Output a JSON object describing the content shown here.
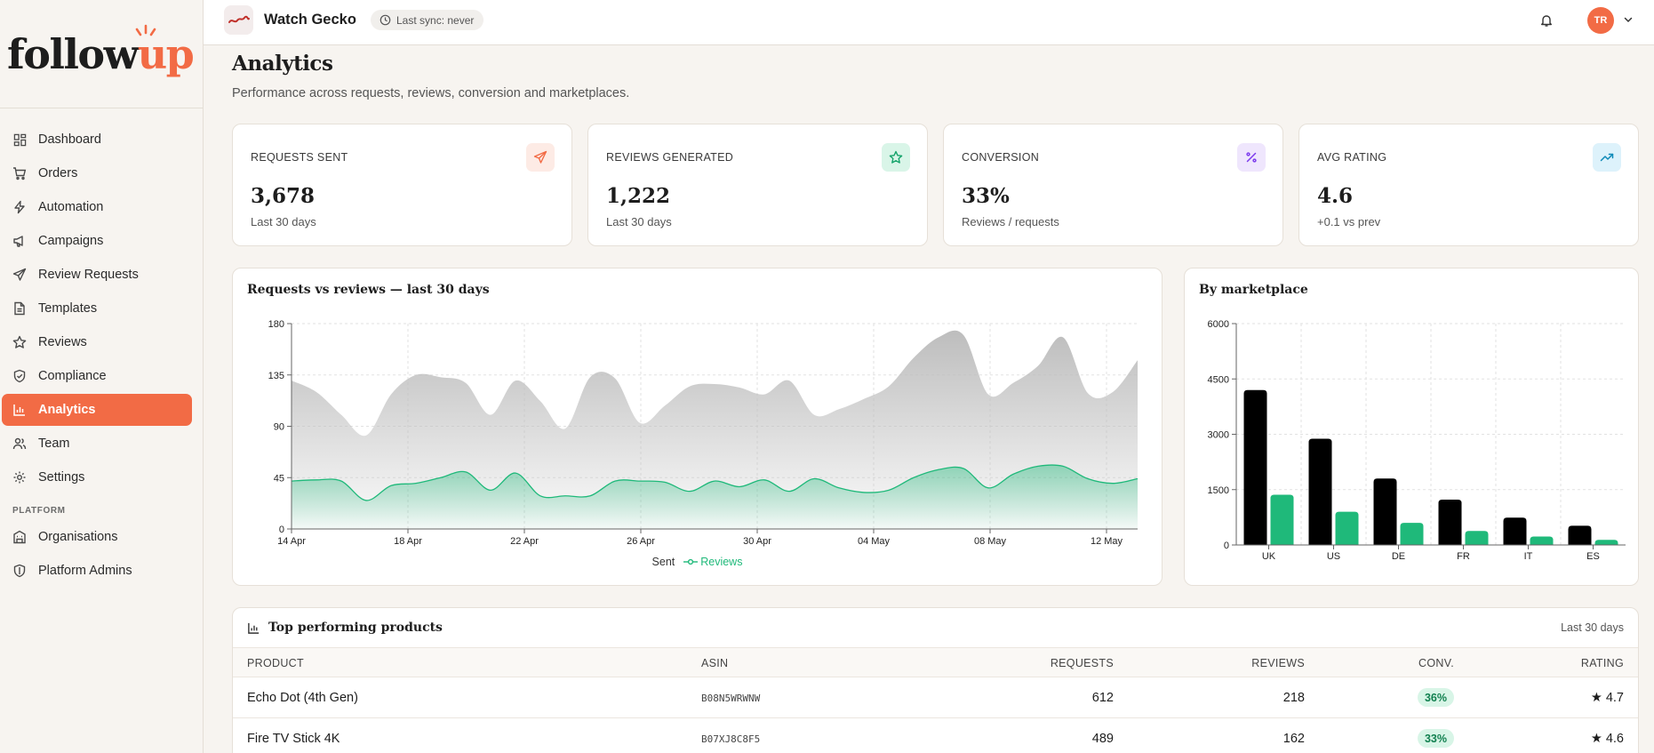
{
  "app": {
    "logo_prefix": "follow",
    "logo_suffix": "up"
  },
  "sidebar": {
    "items": [
      {
        "label": "Dashboard",
        "icon": "dashboard-icon"
      },
      {
        "label": "Orders",
        "icon": "cart-icon"
      },
      {
        "label": "Automation",
        "icon": "bolt-icon"
      },
      {
        "label": "Campaigns",
        "icon": "megaphone-icon"
      },
      {
        "label": "Review Requests",
        "icon": "send-icon"
      },
      {
        "label": "Templates",
        "icon": "document-icon"
      },
      {
        "label": "Reviews",
        "icon": "star-icon"
      },
      {
        "label": "Compliance",
        "icon": "shield-check-icon"
      },
      {
        "label": "Analytics",
        "icon": "bar-chart-icon",
        "active": true
      },
      {
        "label": "Team",
        "icon": "users-icon"
      },
      {
        "label": "Settings",
        "icon": "gear-icon"
      }
    ],
    "platform_section": "PLATFORM",
    "platform_items": [
      {
        "label": "Organisations",
        "icon": "building-icon"
      },
      {
        "label": "Platform Admins",
        "icon": "shield-icon"
      }
    ]
  },
  "topbar": {
    "store_name": "Watch Gecko",
    "sync_status": "Last sync: never",
    "avatar_initials": "TR"
  },
  "page": {
    "title": "Analytics",
    "subtitle": "Performance across requests, reviews, conversion and marketplaces."
  },
  "kpis": [
    {
      "label": "REQUESTS SENT",
      "value": "3,678",
      "note": "Last 30 days",
      "icon": "send-icon",
      "icon_color": "#f26b45",
      "icon_bg": "#fdebe5"
    },
    {
      "label": "REVIEWS GENERATED",
      "value": "1,222",
      "note": "Last 30 days",
      "icon": "star-icon",
      "icon_color": "#14a36a",
      "icon_bg": "#d9f5e8"
    },
    {
      "label": "CONVERSION",
      "value": "33%",
      "note": "Reviews / requests",
      "icon": "percent-icon",
      "icon_color": "#7c3aed",
      "icon_bg": "#efe6fd"
    },
    {
      "label": "AVG RATING",
      "value": "4.6",
      "note": "+0.1 vs prev",
      "icon": "trending-up-icon",
      "icon_color": "#0e8ab8",
      "icon_bg": "#ddf2fb"
    }
  ],
  "colors": {
    "accent": "#f26b45",
    "sent": "#b8b8b8",
    "reviews": "#1fb97a",
    "bar_dark": "#000000"
  },
  "chart_data": [
    {
      "type": "area",
      "title": "Requests vs reviews — last 30 days",
      "x_ticks": [
        "14 Apr",
        "18 Apr",
        "22 Apr",
        "26 Apr",
        "30 Apr",
        "04 May",
        "08 May",
        "12 May"
      ],
      "ylim": [
        0,
        180
      ],
      "y_ticks": [
        0,
        45,
        90,
        135,
        180
      ],
      "grid": true,
      "legend": "bottom",
      "series": [
        {
          "name": "Sent",
          "values": [
            130,
            120,
            100,
            82,
            118,
            135,
            133,
            128,
            100,
            130,
            112,
            88,
            133,
            132,
            93,
            108,
            125,
            127,
            124,
            118,
            130,
            100,
            105,
            114,
            125,
            150,
            168,
            170,
            118,
            128,
            143,
            168,
            119,
            120,
            148
          ]
        },
        {
          "name": "Reviews",
          "values": [
            42,
            43,
            42,
            25,
            38,
            40,
            45,
            50,
            34,
            49,
            29,
            29,
            29,
            42,
            42,
            41,
            33,
            42,
            37,
            43,
            33,
            44,
            36,
            32,
            34,
            45,
            52,
            53,
            36,
            48,
            55,
            55,
            44,
            40,
            44
          ]
        }
      ]
    },
    {
      "type": "bar",
      "title": "By marketplace",
      "categories": [
        "UK",
        "US",
        "DE",
        "FR",
        "IT",
        "ES"
      ],
      "ylim": [
        0,
        6000
      ],
      "y_ticks": [
        0,
        1500,
        3000,
        4500,
        6000
      ],
      "grid": true,
      "series": [
        {
          "values": [
            4200,
            2880,
            1800,
            1230,
            740,
            520
          ]
        },
        {
          "values": [
            1360,
            900,
            600,
            380,
            230,
            140
          ]
        }
      ]
    }
  ],
  "table": {
    "title": "Top performing products",
    "range": "Last 30 days",
    "columns": [
      "PRODUCT",
      "ASIN",
      "REQUESTS",
      "REVIEWS",
      "CONV.",
      "RATING"
    ],
    "rows": [
      {
        "product": "Echo Dot (4th Gen)",
        "asin": "B08N5WRWNW",
        "requests": "612",
        "reviews": "218",
        "conv": "36%",
        "rating": "★ 4.7"
      },
      {
        "product": "Fire TV Stick 4K",
        "asin": "B07XJ8C8F5",
        "requests": "489",
        "reviews": "162",
        "conv": "33%",
        "rating": "★ 4.6"
      }
    ]
  }
}
